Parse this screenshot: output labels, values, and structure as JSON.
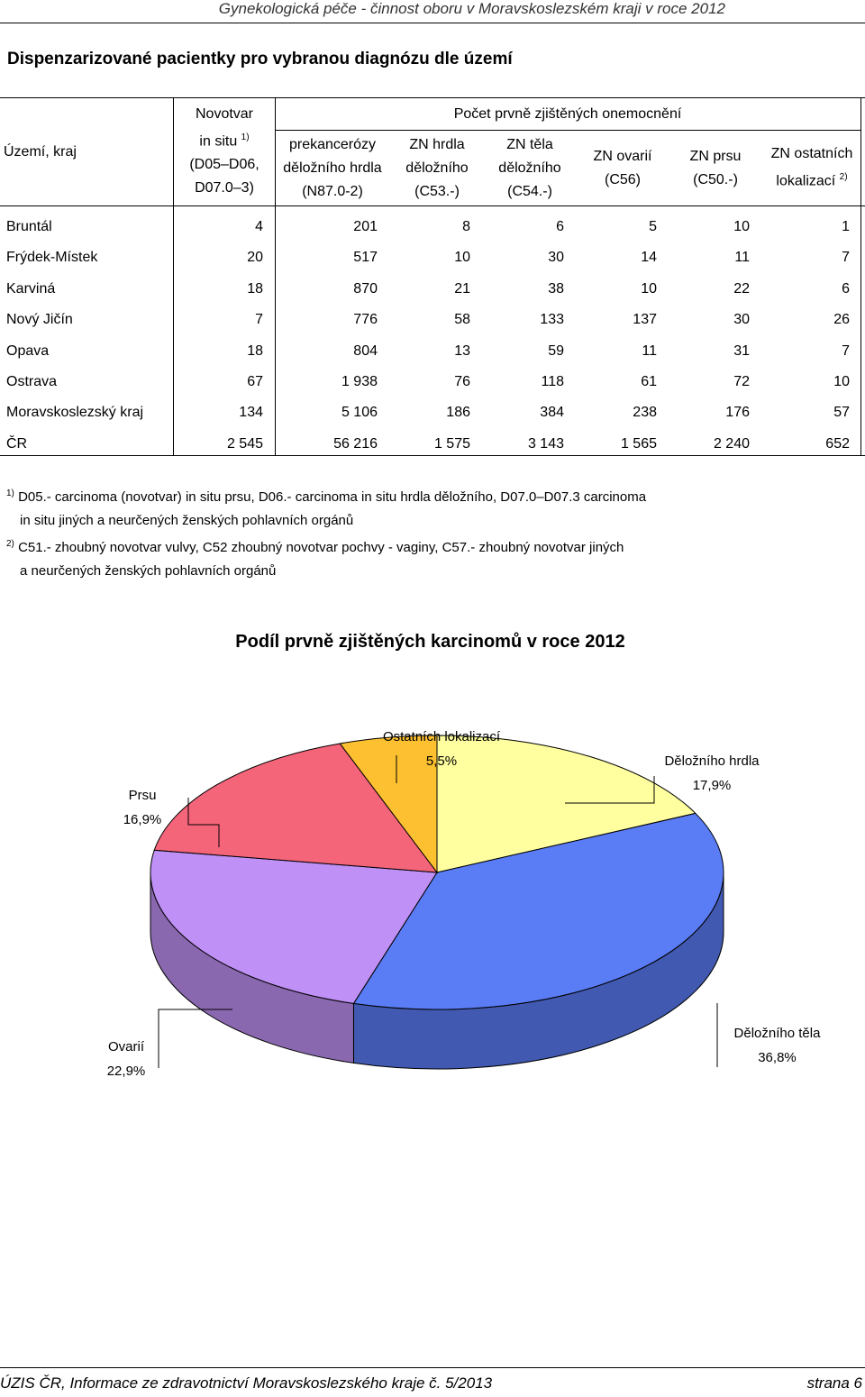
{
  "header": {
    "title": "Gynekologická péče - činnost oboru v Moravskoslezském kraji v roce 2012"
  },
  "section_title": "Dispenzarizované pacientky pro vybranou diagnózu dle území",
  "table": {
    "col_region": "Území, kraj",
    "col_novotvar": {
      "l1": "Novotvar",
      "l2": "in situ",
      "sup": "1)",
      "l3": "(D05–D06,",
      "l4": "D07.0–3)"
    },
    "group_header": "Počet prvně zjištěných onemocnění",
    "col_prekanc": {
      "l1": "prekancerózy",
      "l2": "děložního hrdla",
      "l3": "(N87.0-2)"
    },
    "col_hrdla": {
      "l1": "ZN hrdla",
      "l2": "děložního",
      "l3": "(C53.-)"
    },
    "col_tela": {
      "l1": "ZN těla",
      "l2": "děložního",
      "l3": "(C54.-)"
    },
    "col_ovarii": {
      "l1": "ZN ovarií",
      "l2": "(C56)"
    },
    "col_prsu": {
      "l1": "ZN prsu",
      "l2": "(C50.-)"
    },
    "col_ostatnich": {
      "l1": "ZN ostatních",
      "l2": "lokalizací",
      "sup": "2)"
    },
    "rows": [
      {
        "name": "Bruntál",
        "v": [
          "4",
          "201",
          "8",
          "6",
          "5",
          "10",
          "1"
        ]
      },
      {
        "name": "Frýdek-Místek",
        "v": [
          "20",
          "517",
          "10",
          "30",
          "14",
          "11",
          "7"
        ]
      },
      {
        "name": "Karviná",
        "v": [
          "18",
          "870",
          "21",
          "38",
          "10",
          "22",
          "6"
        ]
      },
      {
        "name": "Nový Jičín",
        "v": [
          "7",
          "776",
          "58",
          "133",
          "137",
          "30",
          "26"
        ]
      },
      {
        "name": "Opava",
        "v": [
          "18",
          "804",
          "13",
          "59",
          "11",
          "31",
          "7"
        ]
      },
      {
        "name": "Ostrava",
        "v": [
          "67",
          "1 938",
          "76",
          "118",
          "61",
          "72",
          "10"
        ]
      },
      {
        "name": "Moravskoslezský kraj",
        "v": [
          "134",
          "5 106",
          "186",
          "384",
          "238",
          "176",
          "57"
        ]
      },
      {
        "name": "ČR",
        "v": [
          "2 545",
          "56 216",
          "1 575",
          "3 143",
          "1 565",
          "2 240",
          "652"
        ]
      }
    ]
  },
  "footnotes": {
    "f1_sup": "1)",
    "f1_line1": "D05.- carcinoma (novotvar) in situ prsu, D06.- carcinoma in situ hrdla děložního, D07.0–D07.3 carcinoma",
    "f1_line2": "in situ jiných a neurčených ženských pohlavních orgánů",
    "f2_sup": "2)",
    "f2_line1": "C51.- zhoubný novotvar vulvy, C52 zhoubný novotvar pochvy - vaginy, C57.- zhoubný novotvar jiných",
    "f2_line2": "a neurčených ženských pohlavních orgánů"
  },
  "chart_data": {
    "type": "pie",
    "title": "Podíl prvně zjištěných karcinomů v roce 2012",
    "slices": [
      {
        "label": "Děložního hrdla",
        "value_text": "17,9%",
        "value": 17.9,
        "color": "#ffffa0"
      },
      {
        "label": "Děložního těla",
        "value_text": "36,8%",
        "value": 36.8,
        "color": "#5a7cf5"
      },
      {
        "label": "Ovarií",
        "value_text": "22,9%",
        "value": 22.9,
        "color": "#bf90f5"
      },
      {
        "label": "Prsu",
        "value_text": "16,9%",
        "value": 16.9,
        "color": "#f5657a"
      },
      {
        "label": "Ostatních lokalizací",
        "value_text": "5,5%",
        "value": 5.5,
        "color": "#fcc030"
      }
    ]
  },
  "footer": {
    "left": "ÚZIS ČR, Informace ze zdravotnictví Moravskoslezského kraje č. 5/2013",
    "right": "strana 6"
  }
}
